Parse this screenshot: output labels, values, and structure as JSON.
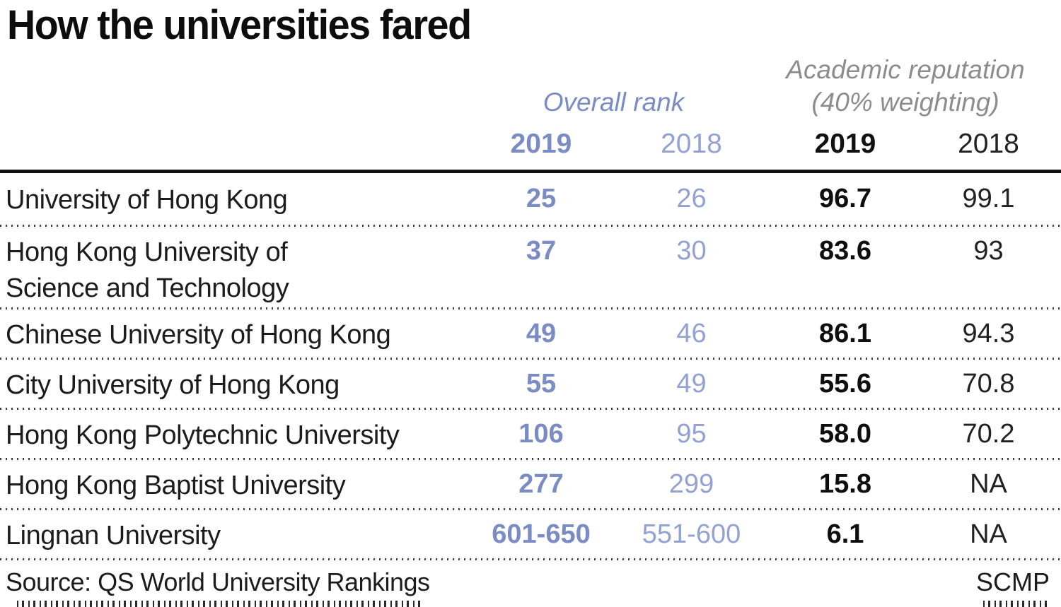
{
  "title": "How the universities fared",
  "colors": {
    "rank_blue_bold": "#7b8cc5",
    "rank_blue_light": "#93a2d3",
    "reputation_gray": "#8d8d8d",
    "text_black": "#1a1a1a"
  },
  "table": {
    "group_headers": {
      "overall_rank": "Overall rank",
      "academic_reputation_line1": "Academic reputation",
      "academic_reputation_line2": "(40% weighting)"
    },
    "year_headers": {
      "rank_2019": "2019",
      "rank_2018": "2018",
      "rep_2019": "2019",
      "rep_2018": "2018"
    },
    "rows": [
      {
        "name": "University of Hong Kong",
        "rank_2019": "25",
        "rank_2018": "26",
        "rep_2019": "96.7",
        "rep_2018": "99.1"
      },
      {
        "name": "Hong Kong University of\nScience and Technology",
        "rank_2019": "37",
        "rank_2018": "30",
        "rep_2019": "83.6",
        "rep_2018": "93"
      },
      {
        "name": "Chinese University of Hong Kong",
        "rank_2019": "49",
        "rank_2018": "46",
        "rep_2019": "86.1",
        "rep_2018": "94.3"
      },
      {
        "name": "City University of Hong Kong",
        "rank_2019": "55",
        "rank_2018": "49",
        "rep_2019": "55.6",
        "rep_2018": "70.8"
      },
      {
        "name": "Hong Kong Polytechnic University",
        "rank_2019": "106",
        "rank_2018": "95",
        "rep_2019": "58.0",
        "rep_2018": "70.2"
      },
      {
        "name": "Hong Kong Baptist University",
        "rank_2019": "277",
        "rank_2018": "299",
        "rep_2019": "15.8",
        "rep_2018": "NA"
      },
      {
        "name": "Lingnan University",
        "rank_2019": "601-650",
        "rank_2018": "551-600",
        "rep_2019": "6.1",
        "rep_2018": "NA"
      }
    ]
  },
  "footer": {
    "source": "Source: QS World University Rankings",
    "credit": "SCMP"
  },
  "chart_data": {
    "type": "table",
    "title": "How the universities fared",
    "column_groups": [
      "Overall rank",
      "Academic reputation (40% weighting)"
    ],
    "columns": [
      "University",
      "Overall rank 2019",
      "Overall rank 2018",
      "Academic reputation 2019",
      "Academic reputation 2018"
    ],
    "rows": [
      [
        "University of Hong Kong",
        "25",
        "26",
        "96.7",
        "99.1"
      ],
      [
        "Hong Kong University of Science and Technology",
        "37",
        "30",
        "83.6",
        "93"
      ],
      [
        "Chinese University of Hong Kong",
        "49",
        "46",
        "86.1",
        "94.3"
      ],
      [
        "City University of Hong Kong",
        "55",
        "49",
        "55.6",
        "70.8"
      ],
      [
        "Hong Kong Polytechnic University",
        "106",
        "95",
        "58.0",
        "70.2"
      ],
      [
        "Hong Kong Baptist University",
        "277",
        "299",
        "15.8",
        "NA"
      ],
      [
        "Lingnan University",
        "601-650",
        "551-600",
        "6.1",
        "NA"
      ]
    ],
    "source": "Source: QS World University Rankings",
    "credit": "SCMP"
  }
}
